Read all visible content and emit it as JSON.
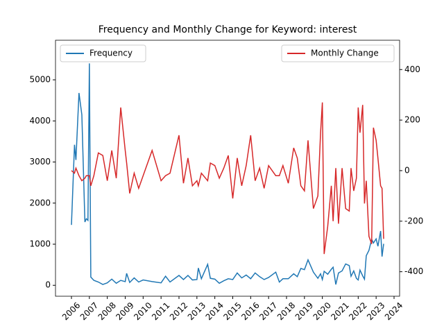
{
  "chart_data": {
    "type": "line",
    "title": "Frequency and Monthly Change for Keyword: interest",
    "x": [
      2006.0,
      2006.17,
      2006.25,
      2006.42,
      2006.58,
      2006.75,
      2006.83,
      2006.92,
      2007.0,
      2007.08,
      2007.25,
      2007.5,
      2007.75,
      2008.0,
      2008.25,
      2008.5,
      2008.75,
      2009.0,
      2009.08,
      2009.25,
      2009.5,
      2009.75,
      2010.0,
      2010.5,
      2011.0,
      2011.25,
      2011.5,
      2012.0,
      2012.25,
      2012.5,
      2012.75,
      2013.0,
      2013.08,
      2013.25,
      2013.6,
      2013.75,
      2014.0,
      2014.25,
      2014.5,
      2014.75,
      2015.0,
      2015.25,
      2015.5,
      2015.75,
      2016.0,
      2016.25,
      2016.5,
      2016.75,
      2017.0,
      2017.4,
      2017.6,
      2017.8,
      2018.1,
      2018.4,
      2018.6,
      2018.8,
      2019.0,
      2019.2,
      2019.5,
      2019.75,
      2019.9,
      2020.0,
      2020.1,
      2020.3,
      2020.5,
      2020.6,
      2020.75,
      2020.9,
      2021.1,
      2021.3,
      2021.5,
      2021.6,
      2021.75,
      2021.9,
      2022.0,
      2022.1,
      2022.25,
      2022.35,
      2022.45,
      2022.6,
      2022.75,
      2022.85,
      2023.0,
      2023.1,
      2023.25,
      2023.33,
      2023.42
    ],
    "series": [
      {
        "name": "Frequency",
        "color": "#1f77b4",
        "axis": "y",
        "legend": "upper left",
        "values": [
          1470,
          3420,
          3050,
          4680,
          4150,
          1540,
          1620,
          1580,
          5400,
          200,
          120,
          80,
          20,
          60,
          150,
          50,
          120,
          90,
          290,
          70,
          180,
          80,
          130,
          90,
          60,
          220,
          80,
          240,
          140,
          240,
          130,
          140,
          420,
          160,
          510,
          170,
          150,
          50,
          110,
          160,
          140,
          300,
          180,
          250,
          160,
          300,
          210,
          140,
          190,
          320,
          80,
          160,
          160,
          280,
          210,
          410,
          380,
          620,
          320,
          170,
          280,
          140,
          340,
          270,
          390,
          440,
          20,
          300,
          350,
          520,
          480,
          220,
          350,
          170,
          130,
          370,
          230,
          150,
          720,
          850,
          1120,
          1030,
          1130,
          950,
          1320,
          700,
          1010
        ]
      },
      {
        "name": "Monthly Change",
        "color": "#d62728",
        "axis": "y2",
        "legend": "upper right",
        "values": [
          0,
          -10,
          10,
          -20,
          -40,
          -30,
          -20,
          -20,
          -20,
          -60,
          -20,
          70,
          60,
          -40,
          80,
          -30,
          250,
          80,
          30,
          -90,
          -10,
          -70,
          -20,
          80,
          -40,
          -20,
          -10,
          140,
          -50,
          50,
          -60,
          -40,
          -60,
          -10,
          -40,
          30,
          20,
          -30,
          10,
          60,
          -110,
          50,
          -60,
          20,
          140,
          -40,
          10,
          -70,
          20,
          -20,
          -20,
          20,
          -50,
          90,
          50,
          -60,
          -80,
          120,
          -150,
          -100,
          150,
          270,
          -330,
          -220,
          -60,
          -200,
          10,
          -210,
          10,
          -150,
          -160,
          10,
          -80,
          -30,
          250,
          150,
          260,
          -130,
          -40,
          -260,
          -290,
          170,
          120,
          50,
          -60,
          -70,
          -270
        ]
      }
    ],
    "xlim": [
      2005.11,
      2024.31
    ],
    "xticks": [
      2006,
      2007,
      2008,
      2009,
      2010,
      2011,
      2012,
      2013,
      2014,
      2015,
      2016,
      2017,
      2018,
      2019,
      2020,
      2021,
      2022,
      2023,
      2024
    ],
    "ylim": [
      -266,
      5963
    ],
    "yticks": [
      0,
      1000,
      2000,
      3000,
      4000,
      5000
    ],
    "y2lim": [
      -497,
      516
    ],
    "y2ticks": [
      -400,
      -200,
      0,
      200,
      400
    ]
  }
}
